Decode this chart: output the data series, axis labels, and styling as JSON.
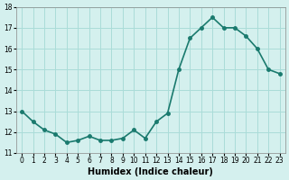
{
  "x": [
    0,
    1,
    2,
    3,
    4,
    5,
    6,
    7,
    8,
    9,
    10,
    11,
    12,
    13,
    14,
    15,
    16,
    17,
    18,
    19,
    20,
    21,
    22,
    23
  ],
  "y": [
    13.0,
    12.5,
    12.1,
    11.9,
    11.5,
    11.6,
    11.8,
    11.6,
    11.6,
    11.7,
    12.1,
    11.7,
    12.5,
    12.9,
    15.0,
    16.5,
    17.0,
    17.5,
    17.0,
    17.0,
    16.6,
    16.0,
    15.0,
    14.8
  ],
  "xlabel": "Humidex (Indice chaleur)",
  "ylim": [
    11,
    18
  ],
  "xlim_min": -0.5,
  "xlim_max": 23.5,
  "yticks": [
    11,
    12,
    13,
    14,
    15,
    16,
    17,
    18
  ],
  "xticks": [
    0,
    1,
    2,
    3,
    4,
    5,
    6,
    7,
    8,
    9,
    10,
    11,
    12,
    13,
    14,
    15,
    16,
    17,
    18,
    19,
    20,
    21,
    22,
    23
  ],
  "xtick_labels": [
    "0",
    "1",
    "2",
    "3",
    "4",
    "5",
    "6",
    "7",
    "8",
    "9",
    "10",
    "11",
    "12",
    "13",
    "14",
    "15",
    "16",
    "17",
    "18",
    "19",
    "20",
    "21",
    "22",
    "23"
  ],
  "line_color": "#1a7a6e",
  "marker_color": "#1a7a6e",
  "bg_color": "#d4f0ee",
  "grid_color": "#aadcd8"
}
